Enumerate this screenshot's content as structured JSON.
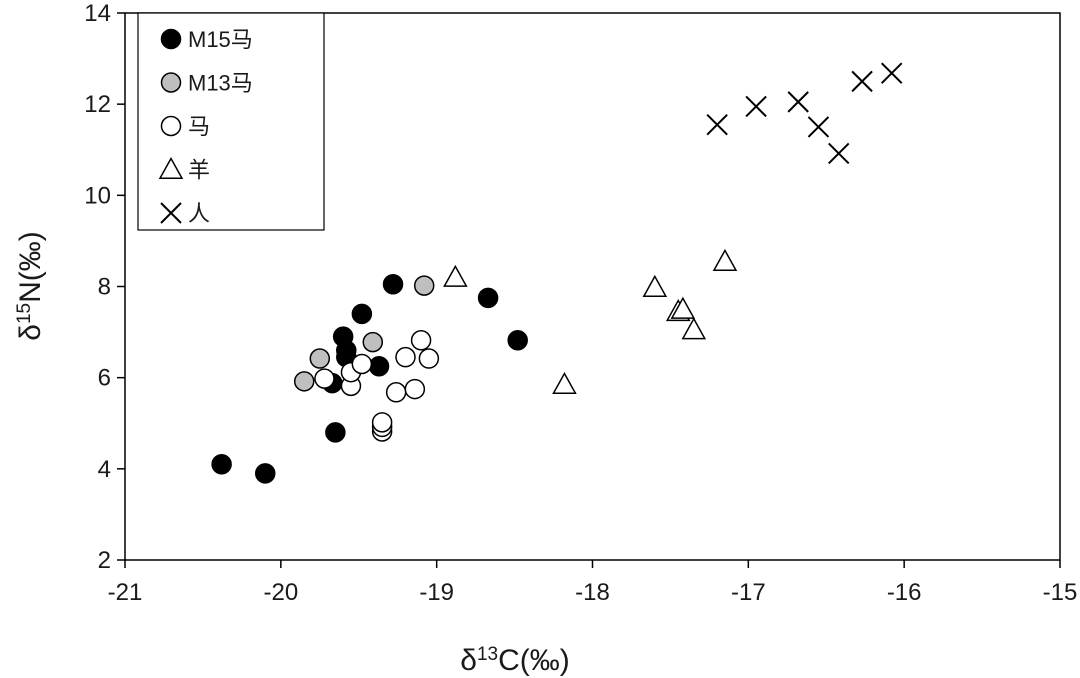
{
  "chart_data": {
    "type": "scatter",
    "title": "",
    "xlabel": {
      "prefix": "δ",
      "sup": "13",
      "suffix": "C(‰)"
    },
    "ylabel": {
      "prefix": "δ",
      "sup": "15",
      "suffix": "N(‰)"
    },
    "xlim": [
      -21,
      -15
    ],
    "ylim": [
      2,
      14
    ],
    "xticks": [
      -21,
      -20,
      -19,
      -18,
      -17,
      -16,
      -15
    ],
    "yticks": [
      2,
      4,
      6,
      8,
      10,
      12,
      14
    ],
    "grid": false,
    "legend_position": "top-left",
    "series": [
      {
        "name": "M15马",
        "marker": "circle-filled",
        "color": "#000000",
        "points": [
          [
            -20.38,
            4.1
          ],
          [
            -20.1,
            3.9
          ],
          [
            -19.65,
            4.8
          ],
          [
            -19.67,
            5.88
          ],
          [
            -19.58,
            6.45
          ],
          [
            -19.6,
            6.9
          ],
          [
            -19.58,
            6.6
          ],
          [
            -19.48,
            7.4
          ],
          [
            -19.37,
            6.25
          ],
          [
            -19.28,
            8.05
          ],
          [
            -18.67,
            7.75
          ],
          [
            -18.48,
            6.82
          ]
        ]
      },
      {
        "name": "M13马",
        "marker": "circle-gray",
        "color": "#bfbfbf",
        "points": [
          [
            -19.85,
            5.92
          ],
          [
            -19.75,
            6.42
          ],
          [
            -19.41,
            6.78
          ],
          [
            -19.08,
            8.02
          ]
        ]
      },
      {
        "name": "马",
        "marker": "circle-open",
        "color": "#ffffff",
        "points": [
          [
            -19.72,
            5.98
          ],
          [
            -19.55,
            5.82
          ],
          [
            -19.55,
            6.12
          ],
          [
            -19.48,
            6.3
          ],
          [
            -19.35,
            4.82
          ],
          [
            -19.35,
            4.92
          ],
          [
            -19.35,
            5.02
          ],
          [
            -19.26,
            5.68
          ],
          [
            -19.2,
            6.45
          ],
          [
            -19.14,
            5.75
          ],
          [
            -19.1,
            6.82
          ],
          [
            -19.05,
            6.42
          ]
        ]
      },
      {
        "name": "羊",
        "marker": "triangle-open",
        "color": "#ffffff",
        "points": [
          [
            -18.88,
            8.2
          ],
          [
            -18.18,
            5.85
          ],
          [
            -17.6,
            7.98
          ],
          [
            -17.45,
            7.45
          ],
          [
            -17.42,
            7.5
          ],
          [
            -17.35,
            7.05
          ],
          [
            -17.15,
            8.55
          ]
        ]
      },
      {
        "name": "人",
        "marker": "cross",
        "color": "#000000",
        "points": [
          [
            -17.2,
            11.55
          ],
          [
            -16.95,
            11.95
          ],
          [
            -16.68,
            12.05
          ],
          [
            -16.55,
            11.5
          ],
          [
            -16.42,
            10.92
          ],
          [
            -16.27,
            12.5
          ],
          [
            -16.08,
            12.68
          ]
        ]
      }
    ]
  }
}
